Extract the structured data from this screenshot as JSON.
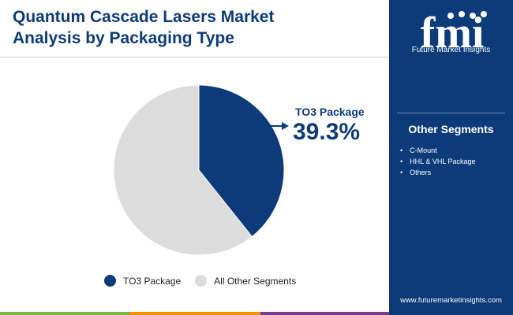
{
  "header": {
    "title_line1": "Quantum Cascade Lasers Market",
    "title_line2": "Analysis by Packaging Type"
  },
  "chart_data": {
    "type": "pie",
    "slices": [
      {
        "label": "TO3 Package",
        "value": 39.3,
        "color": "#0d3b7a"
      },
      {
        "label": "All Other Segments",
        "value": 60.7,
        "color": "#dcdcdc"
      }
    ],
    "callout": {
      "label": "TO3 Package",
      "value": "39.3%"
    },
    "legend": [
      {
        "label": "TO3 Package",
        "color": "#0d3b7a"
      },
      {
        "label": "All Other Segments",
        "color": "#dcdcdc"
      }
    ],
    "legend_position": "bottom"
  },
  "sidebar": {
    "brand_letters": "fmi",
    "brand_name": "Future Market Insights",
    "other_segments_title": "Other Segments",
    "other_segments": [
      "C-Mount",
      "HHL & VHL Package",
      "Others"
    ],
    "website": "www.futuremarketinsights.com"
  },
  "colors": {
    "primary": "#0d3b7a",
    "grey": "#dcdcdc",
    "bar_green": "#7ab648",
    "bar_orange": "#f39200",
    "bar_purple": "#7d3a91",
    "bar_blue": "#0d3b7a"
  }
}
